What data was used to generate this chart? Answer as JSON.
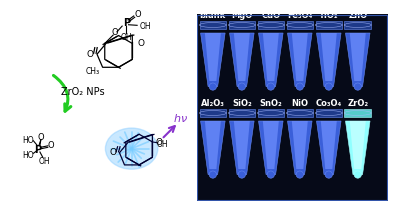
{
  "labels_row1": [
    "blank",
    "MgO",
    "CuO",
    "Fe₃O₄",
    "TiO₂",
    "ZnO"
  ],
  "labels_row2": [
    "Al₂O₃",
    "SiO₂",
    "SnO₂",
    "NiO",
    "Co₃O₄",
    "ZrO₂"
  ],
  "arrow_color": "#22cc22",
  "bg_color": "#060a18",
  "tube_body_color": "#3a5fd9",
  "tube_inner_color": "#6688ff",
  "tube_bright_color": "#b0ffff",
  "tube_cap_color": "#2244aa",
  "label_fontsize": 6.0,
  "catalyst_text": "ZrO₂ NPs",
  "hv_color": "#8833cc"
}
